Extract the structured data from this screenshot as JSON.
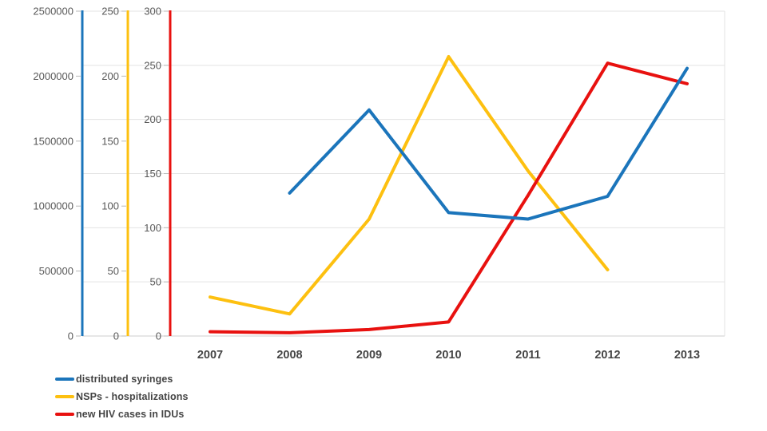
{
  "chart_data": {
    "type": "line",
    "title": "",
    "x_categories": [
      "2007",
      "2008",
      "2009",
      "2010",
      "2011",
      "2012",
      "2013"
    ],
    "grid": "horizontal gridlines at red-axis ticks, light gray",
    "legend_position": "bottom-left",
    "colors": {
      "syringes": "#1B75BB",
      "hospitalizations": "#FDC010",
      "hiv": "#E8110F",
      "gridline": "#E3E3E3",
      "axis_bottom_line": "#CCCCCC",
      "tick_mark": "#B9B9B9",
      "axis_number_text": "#595959",
      "year_text": "#454545"
    },
    "axes": [
      {
        "id": "syringes",
        "color": "#1B75BB",
        "max": 2500000,
        "tick_labels": [
          "2500000",
          "2000000",
          "1500000",
          "1000000",
          "500000",
          "0"
        ]
      },
      {
        "id": "hospitalizations",
        "color": "#FDC010",
        "max": 250,
        "tick_labels": [
          "250",
          "200",
          "150",
          "100",
          "50",
          "0"
        ]
      },
      {
        "id": "hiv",
        "color": "#E8110F",
        "max": 300,
        "tick_labels": [
          "300",
          "250",
          "200",
          "150",
          "100",
          "50",
          "0"
        ]
      }
    ],
    "series": [
      {
        "name": "distributed syringes",
        "color": "#1B75BB",
        "axis": 0,
        "axis_max": 2500000,
        "points": [
          [
            "2008",
            1100000
          ],
          [
            "2009",
            1740000
          ],
          [
            "2010",
            950000
          ],
          [
            "2011",
            900000
          ],
          [
            "2012",
            1075000
          ],
          [
            "2013",
            2060000
          ]
        ]
      },
      {
        "name": "NSPs - hospitalizations",
        "color": "#FDC010",
        "axis": 1,
        "axis_max": 250,
        "points": [
          [
            "2007",
            30
          ],
          [
            "2008",
            17
          ],
          [
            "2009",
            90
          ],
          [
            "2010",
            215
          ],
          [
            "2011",
            127
          ],
          [
            "2012",
            51
          ]
        ]
      },
      {
        "name": "new HIV cases in IDUs",
        "color": "#E8110F",
        "axis": 2,
        "axis_max": 300,
        "points": [
          [
            "2007",
            4
          ],
          [
            "2008",
            3
          ],
          [
            "2009",
            6
          ],
          [
            "2010",
            13
          ],
          [
            "2011",
            130
          ],
          [
            "2012",
            252
          ],
          [
            "2013",
            233
          ]
        ]
      }
    ]
  }
}
